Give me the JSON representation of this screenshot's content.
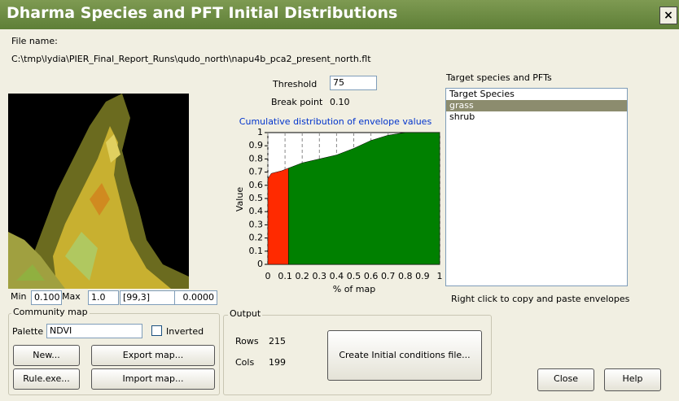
{
  "window": {
    "title": "Dharma Species and PFT Initial Distributions",
    "close": "×"
  },
  "file": {
    "label": "File name:",
    "path": "C:\\tmp\\lydia\\PIER_Final_Report_Runs\\qudo_north\\napu4b_pca2_present_north.flt"
  },
  "threshold": {
    "label": "Threshold",
    "value": "75"
  },
  "break_point": {
    "label": "Break point",
    "value": "0.10"
  },
  "chart_data": {
    "type": "area",
    "title": "Cumulative distribution of envelope values",
    "x_label": "% of map",
    "y_label": "Value",
    "x": [
      0,
      0.02,
      0.05,
      0.08,
      0.12,
      0.2,
      0.3,
      0.4,
      0.5,
      0.6,
      0.7,
      0.8,
      1
    ],
    "series": [
      {
        "color": "#ff2a00",
        "values": [
          0.65,
          0.69,
          0.7,
          0.71,
          0.73,
          null,
          null,
          null,
          null,
          null,
          null,
          null,
          null
        ]
      },
      {
        "color": "#008000",
        "values": [
          null,
          null,
          null,
          null,
          0.73,
          0.77,
          0.8,
          0.83,
          0.88,
          0.94,
          0.98,
          1,
          1
        ]
      }
    ],
    "xlim": [
      0,
      1
    ],
    "ylim": [
      0,
      1
    ],
    "xticks": [
      0,
      0.1,
      0.2,
      0.3,
      0.4,
      0.5,
      0.6,
      0.7,
      0.8,
      0.9,
      1
    ],
    "yticks": [
      0,
      0.1,
      0.2,
      0.3,
      0.4,
      0.5,
      0.6,
      0.7,
      0.8,
      0.9,
      1
    ]
  },
  "targets": {
    "label": "Target species and PFTs",
    "items": [
      "Target Species",
      "grass",
      "shrub"
    ],
    "hint": "Right click to copy and paste envelopes"
  },
  "status": {
    "min_label": "Min",
    "min": "0.100",
    "max_label": "Max",
    "max": "1.0",
    "cell": "[99,3]",
    "value": "0.0000"
  },
  "community_map": {
    "label": "Community map",
    "palette_label": "Palette",
    "palette": "NDVI",
    "inverted": "Inverted",
    "buttons": [
      "New...",
      "Export map...",
      "Rule.exe...",
      "Import map..."
    ]
  },
  "output": {
    "label": "Output",
    "rows_label": "Rows",
    "rows": "215",
    "cols_label": "Cols",
    "cols": "199",
    "button": "Create Initial conditions file..."
  },
  "footer": {
    "close": "Close",
    "help": "Help"
  }
}
